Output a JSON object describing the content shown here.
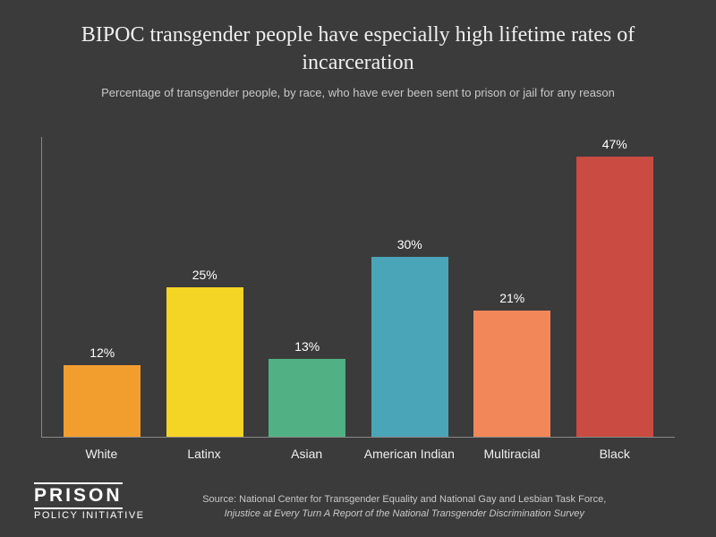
{
  "title": "BIPOC transgender people have especially high lifetime rates of incarceration",
  "subtitle": "Percentage of transgender people, by race, who have ever been sent to prison or jail for any reason",
  "chart": {
    "type": "bar",
    "ymax": 50,
    "background_color": "#3b3b3b",
    "axis_color": "#888888",
    "label_color": "#f0f0f0",
    "value_label_color": "#ffffff",
    "label_fontsize": 14,
    "value_fontsize": 14,
    "bars": [
      {
        "category": "White",
        "value": 12,
        "display": "12%",
        "color": "#f29e2e"
      },
      {
        "category": "Latinx",
        "value": 25,
        "display": "25%",
        "color": "#f4d526"
      },
      {
        "category": "Asian",
        "value": 13,
        "display": "13%",
        "color": "#51b184"
      },
      {
        "category": "American Indian",
        "value": 30,
        "display": "30%",
        "color": "#4ba5b8"
      },
      {
        "category": "Multiracial",
        "value": 21,
        "display": "21%",
        "color": "#f2875a"
      },
      {
        "category": "Black",
        "value": 47,
        "display": "47%",
        "color": "#c94b41"
      }
    ]
  },
  "logo": {
    "line1": "PRISON",
    "line2": "POLICY INITIATIVE"
  },
  "source": {
    "prefix": "Source: National Center for Transgender Equality and National Gay and Lesbian Task Force,",
    "italic": "Injustice at Every Turn A Report of the National Transgender Discrimination Survey"
  }
}
